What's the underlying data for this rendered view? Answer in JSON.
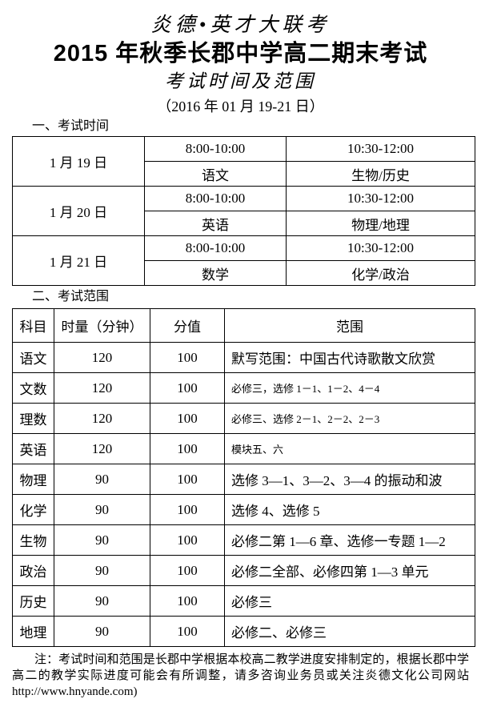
{
  "colors": {
    "text": "#000000",
    "background": "#ffffff",
    "table_border": "#000000"
  },
  "header": {
    "brand": "炎德•英才大联考",
    "title": "2015 年秋季长郡中学高二期末考试",
    "subtitle": "考试时间及范围",
    "date_range": "（2016 年 01 月 19-21 日）"
  },
  "schedule": {
    "heading": "一、考试时间",
    "rows": [
      {
        "date": "1 月 19 日",
        "slot1_time": "8:00-10:00",
        "slot2_time": "10:30-12:00",
        "slot1_subject": "语文",
        "slot2_subject": "生物/历史"
      },
      {
        "date": "1 月 20 日",
        "slot1_time": "8:00-10:00",
        "slot2_time": "10:30-12:00",
        "slot1_subject": "英语",
        "slot2_subject": "物理/地理"
      },
      {
        "date": "1 月 21 日",
        "slot1_time": "8:00-10:00",
        "slot2_time": "10:30-12:00",
        "slot1_subject": "数学",
        "slot2_subject": "化学/政治"
      }
    ]
  },
  "scope": {
    "heading": "二、考试范围",
    "columns": [
      "科目",
      "时量（分钟）",
      "分值",
      "范围"
    ],
    "rows": [
      {
        "subject": "语文",
        "duration": "120",
        "score": "100",
        "range": "默写范围：中国古代诗歌散文欣赏"
      },
      {
        "subject": "文数",
        "duration": "120",
        "score": "100",
        "range": "必修三，选修 1－1、1－2、4－4"
      },
      {
        "subject": "理数",
        "duration": "120",
        "score": "100",
        "range": "必修三、选修 2－1、2－2、2－3"
      },
      {
        "subject": "英语",
        "duration": "120",
        "score": "100",
        "range": "模块五、六"
      },
      {
        "subject": "物理",
        "duration": "90",
        "score": "100",
        "range": "选修 3—1、3—2、3—4 的振动和波"
      },
      {
        "subject": "化学",
        "duration": "90",
        "score": "100",
        "range": "选修 4、选修 5"
      },
      {
        "subject": "生物",
        "duration": "90",
        "score": "100",
        "range": "必修二第 1—6 章、选修一专题 1—2"
      },
      {
        "subject": "政治",
        "duration": "90",
        "score": "100",
        "range": "必修二全部、必修四第 1—3 单元"
      },
      {
        "subject": "历史",
        "duration": "90",
        "score": "100",
        "range": "必修三"
      },
      {
        "subject": "地理",
        "duration": "90",
        "score": "100",
        "range": "必修二、必修三"
      }
    ]
  },
  "footer": {
    "note": "注：考试时间和范围是长郡中学根据本校高二教学进度安排制定的，根据长郡中学高二的教学实际进度可能会有所调整，请多咨询业务员或关注炎德文化公司网站 ",
    "url": "http://www.hnyande.com)"
  }
}
